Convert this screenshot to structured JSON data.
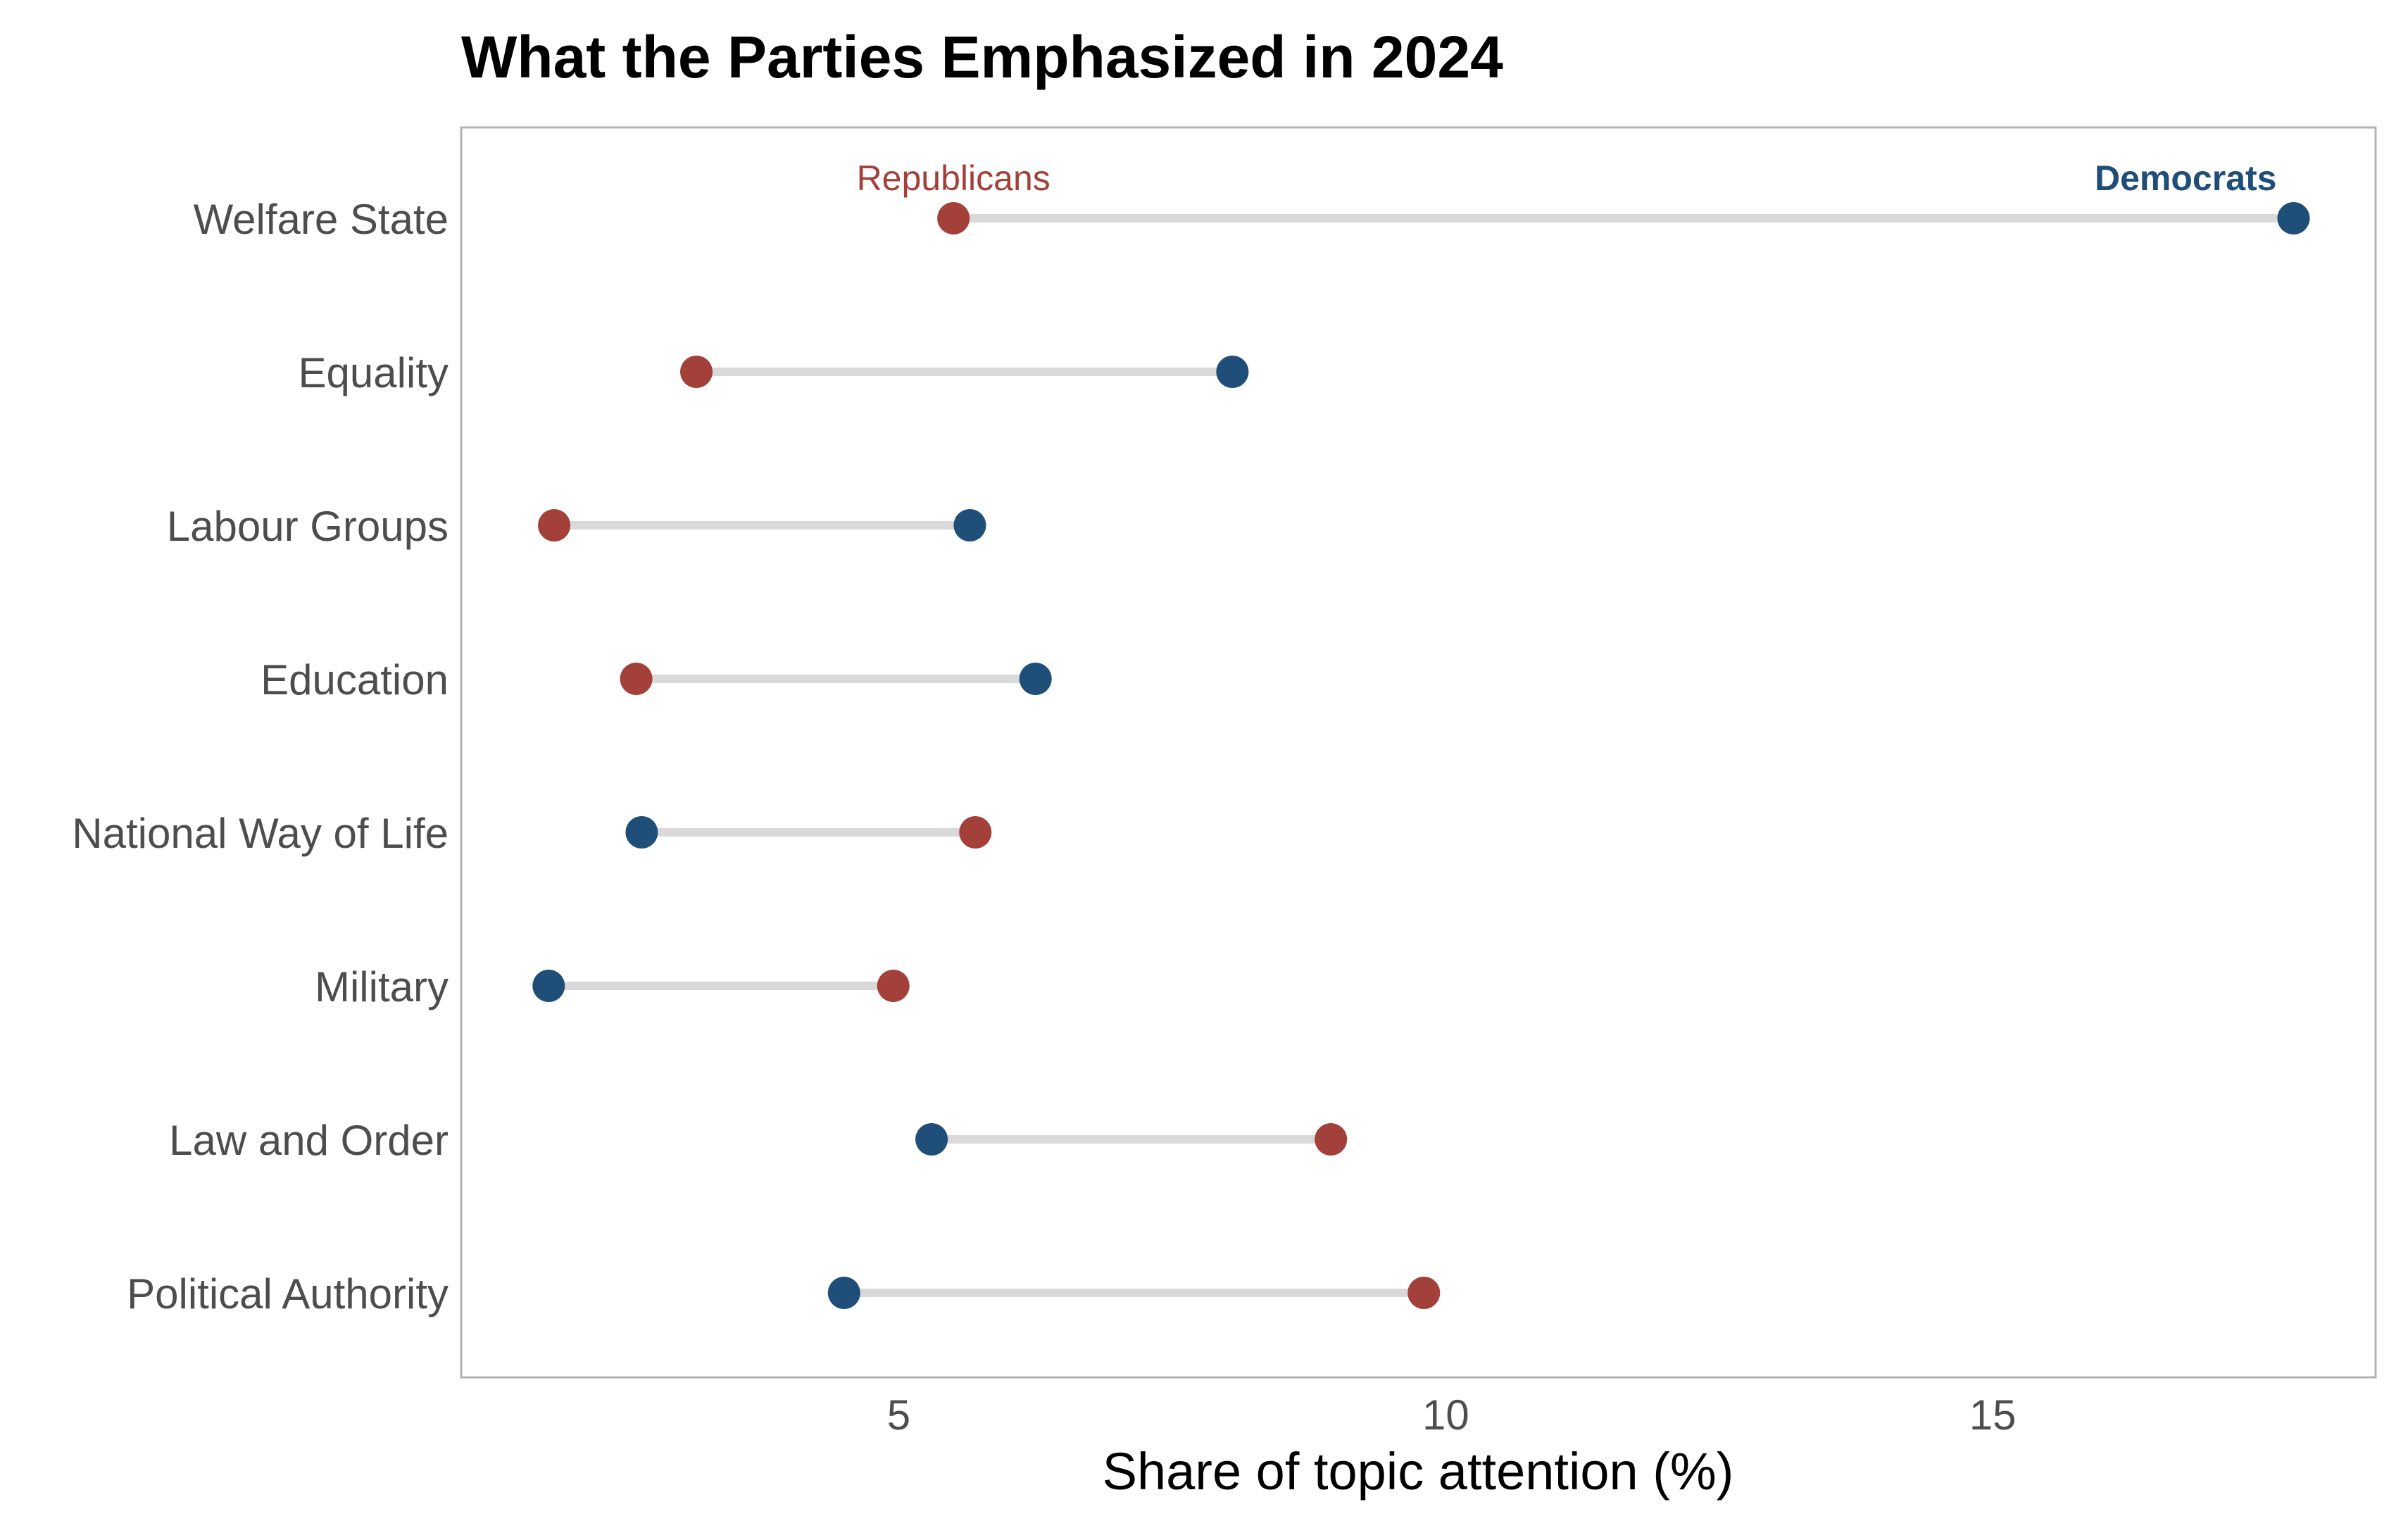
{
  "chart_data": {
    "type": "dumbbell",
    "title": "What the Parties Emphasized in 2024",
    "xlabel": "Share of topic attention (%)",
    "ylabel": "",
    "xlim": [
      1.0,
      18.5
    ],
    "xticks": [
      5,
      10,
      15
    ],
    "grid": false,
    "categories": [
      "Welfare State",
      "Equality",
      "Labour Groups",
      "Education",
      "National Way of Life",
      "Military",
      "Law and Order",
      "Political Authority"
    ],
    "series": [
      {
        "name": "Republicans",
        "color": "#a4403a",
        "values": [
          5.5,
          3.15,
          1.85,
          2.6,
          5.7,
          4.95,
          8.95,
          9.8
        ]
      },
      {
        "name": "Democrats",
        "color": "#1f4e79",
        "values": [
          17.75,
          8.05,
          5.65,
          6.25,
          2.65,
          1.8,
          5.3,
          4.5
        ]
      }
    ],
    "connector_color": "#d9d9d9",
    "frame_color": "#b3b3b3"
  }
}
